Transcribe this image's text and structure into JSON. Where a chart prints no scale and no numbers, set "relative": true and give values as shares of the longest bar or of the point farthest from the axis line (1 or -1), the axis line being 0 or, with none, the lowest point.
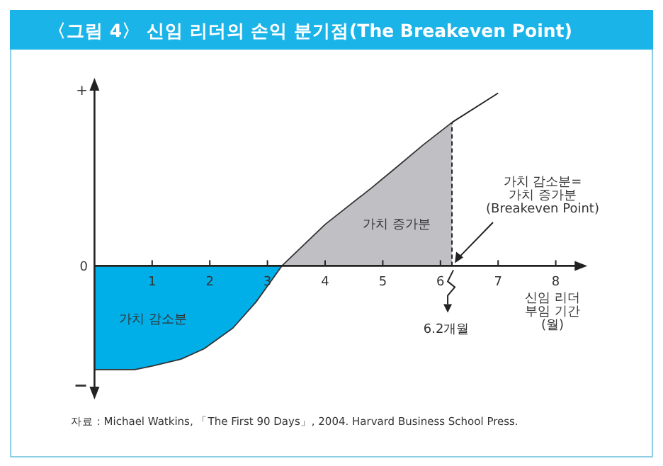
{
  "chart_data": {
    "type": "line",
    "title": "〈그림 4〉 신임 리더의 손익 분기점(The Breakeven Point)",
    "xlabel": "신임 리더\n부임 기간\n(월)",
    "relative": true,
    "xlim": [
      0,
      8.45
    ],
    "xticks": [
      1,
      2,
      3,
      4,
      5,
      6,
      7,
      8
    ],
    "series": [
      {
        "type": "area",
        "color": "#00aee8",
        "x": [
          0,
          0.7,
          1,
          1.5,
          1.9,
          2.4,
          2.8,
          3.25
        ],
        "values": [
          -0.6,
          -0.6,
          -0.58,
          -0.54,
          -0.48,
          -0.36,
          -0.21,
          0
        ]
      },
      {
        "type": "area",
        "color": "#c0c0c4",
        "x": [
          3.25,
          4,
          4.8,
          5.2,
          5.7,
          6.2
        ],
        "values": [
          0,
          0.24,
          0.45,
          0.56,
          0.7,
          0.83
        ]
      },
      {
        "type": "line",
        "color": "#222222",
        "x": [
          6.2,
          7
        ],
        "values": [
          0.83,
          1.0
        ]
      }
    ],
    "ref_lines": [
      {
        "axis": "x",
        "value": 6.2,
        "line_style": "dashed",
        "color": "#222222"
      }
    ],
    "annotations": [
      "+",
      "0",
      "−",
      "가치 감소분",
      "가치 증가분",
      {
        "text": "가치 감소분=\n가치 증가분\n(Breakeven Point)",
        "x": 6.2,
        "y": 0
      },
      "6.2개월",
      "자료 : Michael Watkins, 「The First 90 Days」, 2004. Harvard Business School Press."
    ]
  }
}
